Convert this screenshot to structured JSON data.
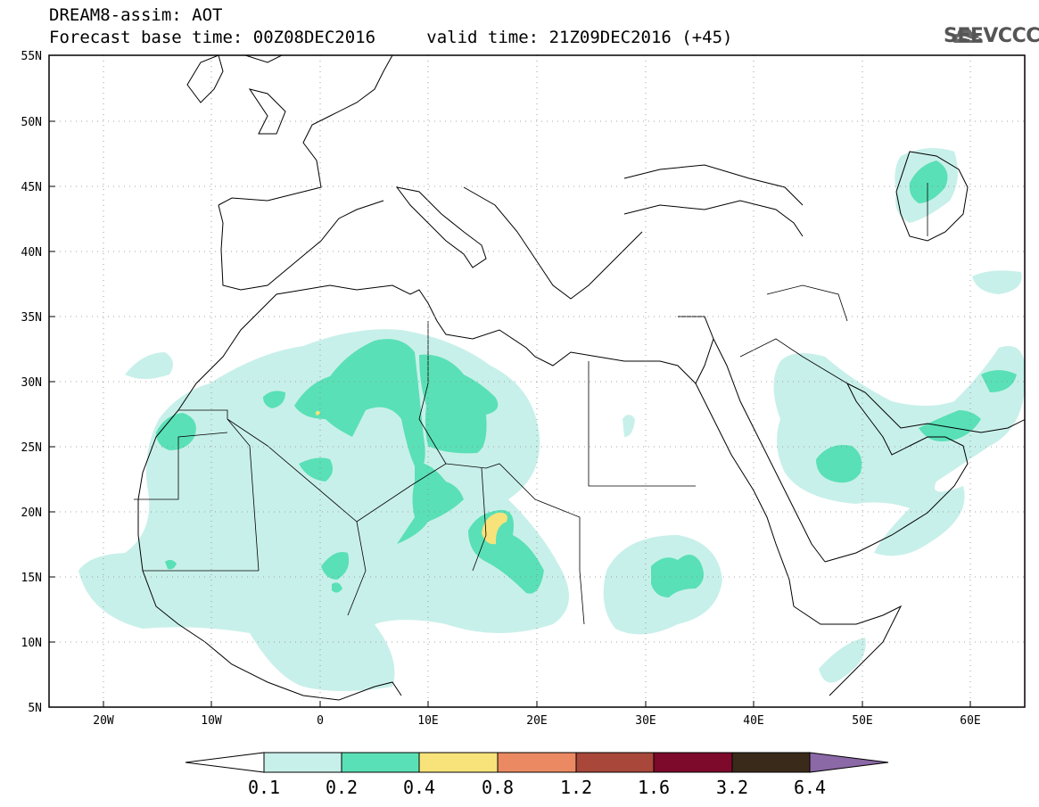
{
  "header": {
    "title_line1": "DREAM8-assim: AOT",
    "base_time_label": "Forecast base time:",
    "base_time": "00Z08DEC2016",
    "valid_time_label": "valid time:",
    "valid_time": "21Z09DEC2016 (+45)",
    "logo_text": "SEEVCCC",
    "logo_icon": "cloud-icon"
  },
  "map": {
    "lon_range": [
      -25,
      65
    ],
    "lat_range": [
      5,
      55
    ],
    "lat_ticks": [
      "5N",
      "10N",
      "15N",
      "20N",
      "25N",
      "30N",
      "35N",
      "40N",
      "45N",
      "50N",
      "55N"
    ],
    "lon_ticks": [
      "20W",
      "10W",
      "0",
      "10E",
      "20E",
      "30E",
      "40E",
      "50E",
      "60E"
    ],
    "grid": "dotted"
  },
  "colorbar": {
    "colors": [
      "#ffffff",
      "#c8f0ea",
      "#5ae0b6",
      "#f7e37a",
      "#eb8a62",
      "#a8473a",
      "#7d0a2b",
      "#3a2a1a",
      "#8b68a6"
    ],
    "labels": [
      "0.1",
      "0.2",
      "0.4",
      "0.8",
      "1.2",
      "1.6",
      "3.2",
      "6.4"
    ]
  }
}
